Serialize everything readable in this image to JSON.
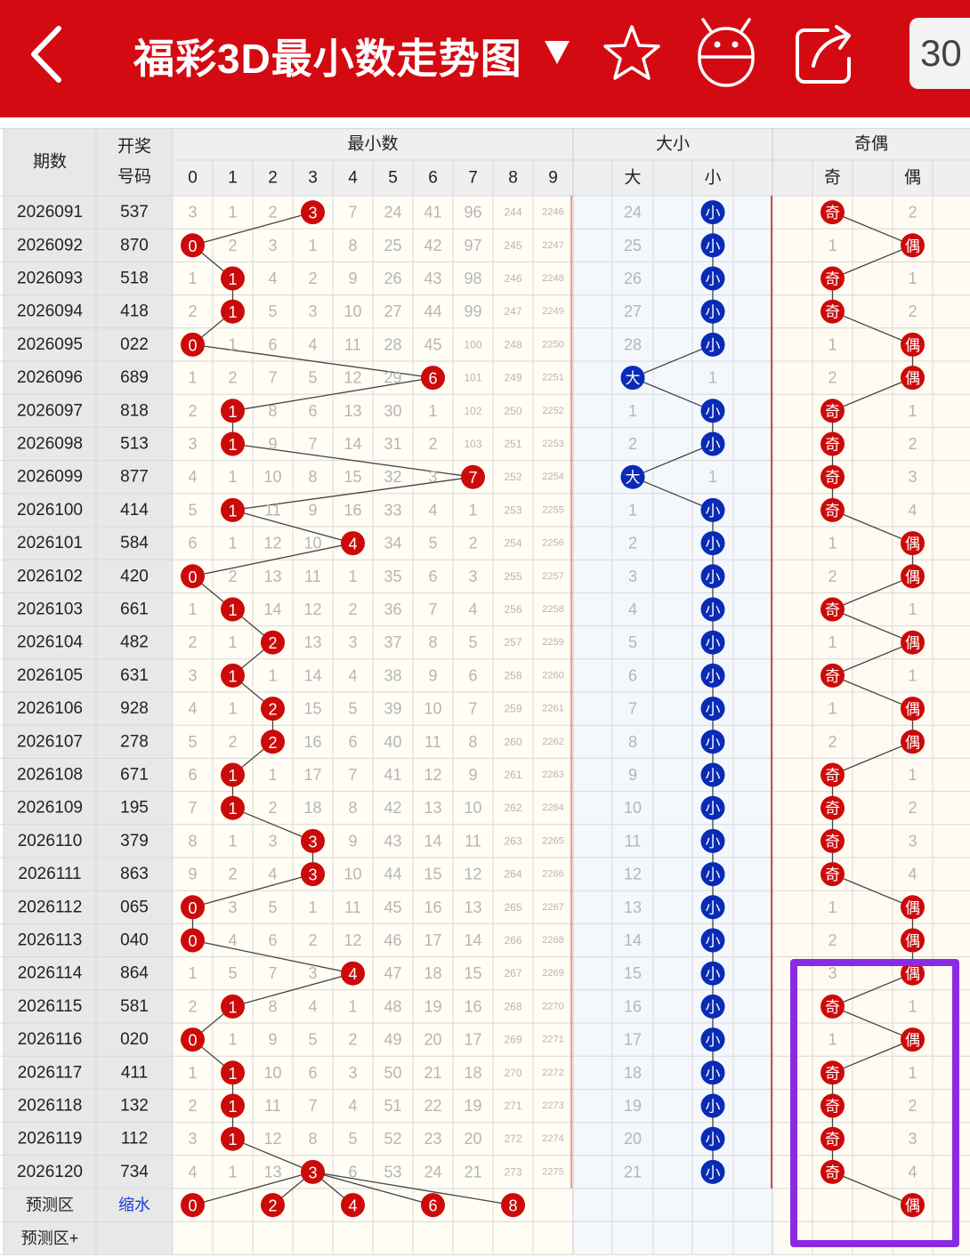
{
  "header": {
    "title": "福彩3D最小数走势图",
    "count_label": "30"
  },
  "icons": {
    "back": "back-arrow-icon",
    "dropdown": "triangle-down-icon",
    "favorite": "star-icon",
    "assistant": "robot-icon",
    "share": "share-icon"
  },
  "colors": {
    "brand": "#d30a12",
    "red_ball": "#cc0a0a",
    "blue_ball": "#0a2bb5",
    "missing_text": "#b5b5b5",
    "highlight": "#8a2be2"
  },
  "table": {
    "headers": {
      "period": "期数",
      "draw_line1": "开奖",
      "draw_line2": "号码",
      "min_group": "最小数",
      "size_group": "大小",
      "parity_group": "奇偶",
      "big": "大",
      "small": "小",
      "odd": "奇",
      "even": "偶",
      "digits": [
        "0",
        "1",
        "2",
        "3",
        "4",
        "5",
        "6",
        "7",
        "8",
        "9"
      ]
    },
    "rows": [
      {
        "period": "2026091",
        "number": "537",
        "min": 3,
        "miss": [
          3,
          1,
          2,
          null,
          7,
          24,
          41,
          96,
          244,
          2246
        ],
        "size": "小",
        "size_miss": 24,
        "parity": "奇",
        "parity_miss": 2
      },
      {
        "period": "2026092",
        "number": "870",
        "min": 0,
        "miss": [
          null,
          2,
          3,
          1,
          8,
          25,
          42,
          97,
          245,
          2247
        ],
        "size": "小",
        "size_miss": 25,
        "parity": "偶",
        "parity_miss": 1
      },
      {
        "period": "2026093",
        "number": "518",
        "min": 1,
        "miss": [
          1,
          null,
          4,
          2,
          9,
          26,
          43,
          98,
          246,
          2248
        ],
        "size": "小",
        "size_miss": 26,
        "parity": "奇",
        "parity_miss": 1
      },
      {
        "period": "2026094",
        "number": "418",
        "min": 1,
        "miss": [
          2,
          null,
          5,
          3,
          10,
          27,
          44,
          99,
          247,
          2249
        ],
        "size": "小",
        "size_miss": 27,
        "parity": "奇",
        "parity_miss": 2
      },
      {
        "period": "2026095",
        "number": "022",
        "min": 0,
        "miss": [
          null,
          1,
          6,
          4,
          11,
          28,
          45,
          100,
          248,
          2250
        ],
        "size": "小",
        "size_miss": 28,
        "parity": "偶",
        "parity_miss": 1
      },
      {
        "period": "2026096",
        "number": "689",
        "min": 6,
        "miss": [
          1,
          2,
          7,
          5,
          12,
          29,
          null,
          101,
          249,
          2251
        ],
        "size": "大",
        "size_miss": 1,
        "parity": "偶",
        "parity_miss": 2
      },
      {
        "period": "2026097",
        "number": "818",
        "min": 1,
        "miss": [
          2,
          null,
          8,
          6,
          13,
          30,
          1,
          102,
          250,
          2252
        ],
        "size": "小",
        "size_miss": 1,
        "parity": "奇",
        "parity_miss": 1
      },
      {
        "period": "2026098",
        "number": "513",
        "min": 1,
        "miss": [
          3,
          null,
          9,
          7,
          14,
          31,
          2,
          103,
          251,
          2253
        ],
        "size": "小",
        "size_miss": 2,
        "parity": "奇",
        "parity_miss": 2
      },
      {
        "period": "2026099",
        "number": "877",
        "min": 7,
        "miss": [
          4,
          1,
          10,
          8,
          15,
          32,
          3,
          null,
          252,
          2254
        ],
        "size": "大",
        "size_miss": 1,
        "parity": "奇",
        "parity_miss": 3
      },
      {
        "period": "2026100",
        "number": "414",
        "min": 1,
        "miss": [
          5,
          null,
          11,
          9,
          16,
          33,
          4,
          1,
          253,
          2255
        ],
        "size": "小",
        "size_miss": 1,
        "parity": "奇",
        "parity_miss": 4
      },
      {
        "period": "2026101",
        "number": "584",
        "min": 4,
        "miss": [
          6,
          1,
          12,
          10,
          null,
          34,
          5,
          2,
          254,
          2256
        ],
        "size": "小",
        "size_miss": 2,
        "parity": "偶",
        "parity_miss": 1
      },
      {
        "period": "2026102",
        "number": "420",
        "min": 0,
        "miss": [
          null,
          2,
          13,
          11,
          1,
          35,
          6,
          3,
          255,
          2257
        ],
        "size": "小",
        "size_miss": 3,
        "parity": "偶",
        "parity_miss": 2
      },
      {
        "period": "2026103",
        "number": "661",
        "min": 1,
        "miss": [
          1,
          null,
          14,
          12,
          2,
          36,
          7,
          4,
          256,
          2258
        ],
        "size": "小",
        "size_miss": 4,
        "parity": "奇",
        "parity_miss": 1
      },
      {
        "period": "2026104",
        "number": "482",
        "min": 2,
        "miss": [
          2,
          1,
          null,
          13,
          3,
          37,
          8,
          5,
          257,
          2259
        ],
        "size": "小",
        "size_miss": 5,
        "parity": "偶",
        "parity_miss": 1
      },
      {
        "period": "2026105",
        "number": "631",
        "min": 1,
        "miss": [
          3,
          null,
          1,
          14,
          4,
          38,
          9,
          6,
          258,
          2260
        ],
        "size": "小",
        "size_miss": 6,
        "parity": "奇",
        "parity_miss": 1
      },
      {
        "period": "2026106",
        "number": "928",
        "min": 2,
        "miss": [
          4,
          1,
          null,
          15,
          5,
          39,
          10,
          7,
          259,
          2261
        ],
        "size": "小",
        "size_miss": 7,
        "parity": "偶",
        "parity_miss": 1
      },
      {
        "period": "2026107",
        "number": "278",
        "min": 2,
        "miss": [
          5,
          2,
          null,
          16,
          6,
          40,
          11,
          8,
          260,
          2262
        ],
        "size": "小",
        "size_miss": 8,
        "parity": "偶",
        "parity_miss": 2
      },
      {
        "period": "2026108",
        "number": "671",
        "min": 1,
        "miss": [
          6,
          null,
          1,
          17,
          7,
          41,
          12,
          9,
          261,
          2263
        ],
        "size": "小",
        "size_miss": 9,
        "parity": "奇",
        "parity_miss": 1
      },
      {
        "period": "2026109",
        "number": "195",
        "min": 1,
        "miss": [
          7,
          null,
          2,
          18,
          8,
          42,
          13,
          10,
          262,
          2264
        ],
        "size": "小",
        "size_miss": 10,
        "parity": "奇",
        "parity_miss": 2
      },
      {
        "period": "2026110",
        "number": "379",
        "min": 3,
        "miss": [
          8,
          1,
          3,
          null,
          9,
          43,
          14,
          11,
          263,
          2265
        ],
        "size": "小",
        "size_miss": 11,
        "parity": "奇",
        "parity_miss": 3
      },
      {
        "period": "2026111",
        "number": "863",
        "min": 3,
        "miss": [
          9,
          2,
          4,
          null,
          10,
          44,
          15,
          12,
          264,
          2266
        ],
        "size": "小",
        "size_miss": 12,
        "parity": "奇",
        "parity_miss": 4
      },
      {
        "period": "2026112",
        "number": "065",
        "min": 0,
        "miss": [
          null,
          3,
          5,
          1,
          11,
          45,
          16,
          13,
          265,
          2267
        ],
        "size": "小",
        "size_miss": 13,
        "parity": "偶",
        "parity_miss": 1
      },
      {
        "period": "2026113",
        "number": "040",
        "min": 0,
        "miss": [
          null,
          4,
          6,
          2,
          12,
          46,
          17,
          14,
          266,
          2268
        ],
        "size": "小",
        "size_miss": 14,
        "parity": "偶",
        "parity_miss": 2
      },
      {
        "period": "2026114",
        "number": "864",
        "min": 4,
        "miss": [
          1,
          5,
          7,
          3,
          null,
          47,
          18,
          15,
          267,
          2269
        ],
        "size": "小",
        "size_miss": 15,
        "parity": "偶",
        "parity_miss": 3
      },
      {
        "period": "2026115",
        "number": "581",
        "min": 1,
        "miss": [
          2,
          null,
          8,
          4,
          1,
          48,
          19,
          16,
          268,
          2270
        ],
        "size": "小",
        "size_miss": 16,
        "parity": "奇",
        "parity_miss": 1
      },
      {
        "period": "2026116",
        "number": "020",
        "min": 0,
        "miss": [
          null,
          1,
          9,
          5,
          2,
          49,
          20,
          17,
          269,
          2271
        ],
        "size": "小",
        "size_miss": 17,
        "parity": "偶",
        "parity_miss": 1
      },
      {
        "period": "2026117",
        "number": "411",
        "min": 1,
        "miss": [
          1,
          null,
          10,
          6,
          3,
          50,
          21,
          18,
          270,
          2272
        ],
        "size": "小",
        "size_miss": 18,
        "parity": "奇",
        "parity_miss": 1
      },
      {
        "period": "2026118",
        "number": "132",
        "min": 1,
        "miss": [
          2,
          null,
          11,
          7,
          4,
          51,
          22,
          19,
          271,
          2273
        ],
        "size": "小",
        "size_miss": 19,
        "parity": "奇",
        "parity_miss": 2
      },
      {
        "period": "2026119",
        "number": "112",
        "min": 1,
        "miss": [
          3,
          null,
          12,
          8,
          5,
          52,
          23,
          20,
          272,
          2274
        ],
        "size": "小",
        "size_miss": 20,
        "parity": "奇",
        "parity_miss": 3
      },
      {
        "period": "2026120",
        "number": "734",
        "min": 3,
        "miss": [
          4,
          1,
          13,
          null,
          6,
          53,
          24,
          21,
          273,
          2275
        ],
        "size": "小",
        "size_miss": 21,
        "parity": "奇",
        "parity_miss": 4
      }
    ],
    "predict": {
      "label": "预测区",
      "number_label": "缩水",
      "balls": [
        0,
        2,
        4,
        6,
        8
      ],
      "parity": "偶"
    },
    "predict_plus": {
      "label": "预测区+"
    }
  }
}
